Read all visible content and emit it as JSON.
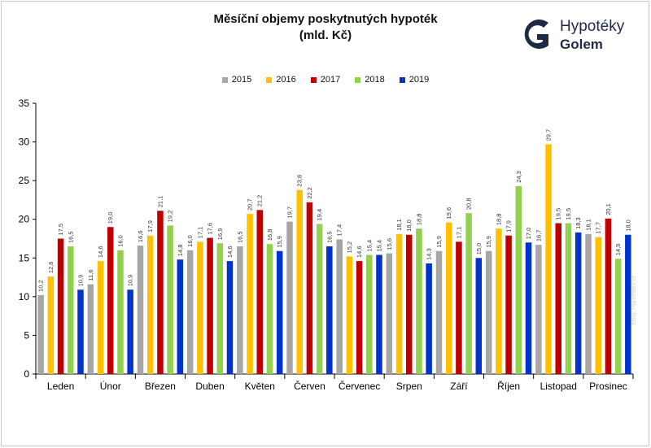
{
  "title_line1": "Měsíční objemy poskytnutých hypoték",
  "title_line2": "(mld. Kč)",
  "logo": {
    "line1": "Hypotéky",
    "line2": "Golem",
    "icon": "golem-g-logo-icon",
    "color": "#1f2a44"
  },
  "source_note": "zdroj: Hypoindex.cz",
  "chart_data": {
    "type": "bar",
    "categories": [
      "Leden",
      "Únor",
      "Březen",
      "Duben",
      "Květen",
      "Červen",
      "Červenec",
      "Srpen",
      "Září",
      "Říjen",
      "Listopad",
      "Prosinec"
    ],
    "series": [
      {
        "name": "2015",
        "color": "#a6a6a6",
        "values": [
          10.2,
          11.6,
          16.6,
          16.0,
          16.5,
          19.7,
          17.4,
          15.6,
          15.9,
          15.9,
          16.7,
          18.1
        ]
      },
      {
        "name": "2016",
        "color": "#ffc000",
        "values": [
          12.6,
          14.6,
          17.9,
          17.1,
          20.7,
          23.8,
          15.2,
          18.1,
          19.6,
          18.8,
          29.7,
          17.7
        ]
      },
      {
        "name": "2017",
        "color": "#c00000",
        "values": [
          17.5,
          19.0,
          21.1,
          17.6,
          21.2,
          22.2,
          14.6,
          18.0,
          17.1,
          17.9,
          19.5,
          20.1
        ]
      },
      {
        "name": "2018",
        "color": "#92d050",
        "values": [
          16.5,
          16.0,
          19.2,
          16.9,
          16.8,
          19.4,
          15.4,
          18.8,
          20.8,
          24.3,
          19.5,
          14.9
        ]
      },
      {
        "name": "2019",
        "color": "#0033cc",
        "values": [
          10.9,
          10.9,
          14.8,
          14.6,
          15.9,
          16.5,
          15.4,
          14.3,
          15.0,
          17.0,
          18.3,
          18.0
        ]
      }
    ],
    "ylim": [
      0,
      35
    ],
    "yticks": [
      0,
      5,
      10,
      15,
      20,
      25,
      30,
      35
    ],
    "grid": false,
    "legend_position": "top-center",
    "data_labels": true
  }
}
